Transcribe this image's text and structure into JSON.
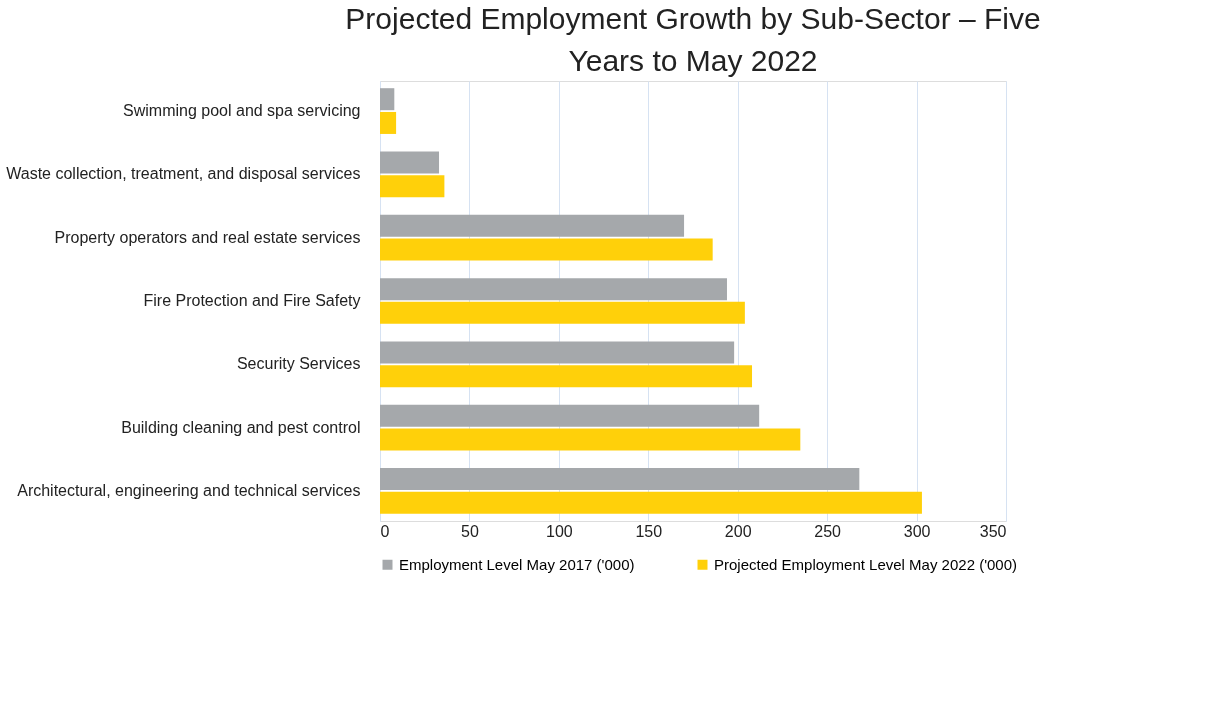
{
  "chart_data": {
    "type": "bar",
    "orientation": "horizontal",
    "title": "Projected Employment Growth by Sub-Sector – Five Years to May 2022",
    "categories": [
      "Swimming pool and spa servicing",
      "Waste collection, treatment, and disposal services",
      "Property operators and real estate services",
      "Fire Protection and Fire Safety",
      "Security Services",
      "Building cleaning and pest control",
      "Architectural, engineering and technical services"
    ],
    "series": [
      {
        "name": "Employment Level May 2017 ('000)",
        "color": "#a5a8ab",
        "values": [
          8,
          33,
          170,
          194,
          198,
          212,
          268
        ]
      },
      {
        "name": "Projected  Employment Level May 2022 ('000)",
        "color": "#ffd00a",
        "values": [
          9,
          36,
          186,
          204,
          208,
          235,
          303
        ]
      }
    ],
    "xlim": [
      0,
      350
    ],
    "xticks": [
      0,
      50,
      100,
      150,
      200,
      250,
      300,
      350
    ],
    "grid": "x",
    "legend": "bottom"
  }
}
